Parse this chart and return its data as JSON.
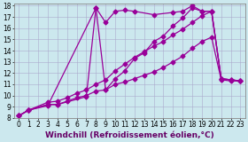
{
  "xlabel": "Windchill (Refroidissement éolien,°C)",
  "bg_color": "#cce8ee",
  "grid_color": "#aaaacc",
  "line_color": "#990099",
  "xlim": [
    -0.5,
    23.5
  ],
  "ylim": [
    8,
    18.2
  ],
  "xticks": [
    0,
    1,
    2,
    3,
    4,
    5,
    6,
    7,
    8,
    9,
    10,
    11,
    12,
    13,
    14,
    15,
    16,
    17,
    18,
    19,
    20,
    21,
    22,
    23
  ],
  "yticks": [
    8,
    9,
    10,
    11,
    12,
    13,
    14,
    15,
    16,
    17,
    18
  ],
  "line1_x": [
    0,
    1,
    3,
    4,
    5,
    6,
    7,
    8,
    9,
    10,
    11,
    12,
    13,
    14,
    15,
    16,
    17,
    18,
    19,
    20,
    21,
    22,
    23
  ],
  "line1_y": [
    8.2,
    8.7,
    9.4,
    9.5,
    9.8,
    10.2,
    10.5,
    11.0,
    11.4,
    12.2,
    12.8,
    13.4,
    13.9,
    14.4,
    14.8,
    15.4,
    15.9,
    16.5,
    17.1,
    17.5,
    11.5,
    11.4,
    11.3
  ],
  "line2_x": [
    0,
    1,
    3,
    4,
    5,
    6,
    7,
    8,
    9,
    10,
    11,
    12,
    13,
    14,
    15,
    16,
    17,
    18,
    19,
    20,
    21,
    22,
    23
  ],
  "line2_y": [
    8.2,
    8.7,
    9.2,
    9.2,
    9.5,
    9.8,
    10.0,
    10.4,
    10.5,
    11.0,
    11.2,
    11.5,
    11.8,
    12.1,
    12.5,
    13.0,
    13.5,
    14.2,
    14.8,
    15.2,
    11.4,
    11.3,
    11.3
  ],
  "line3_x": [
    0,
    1,
    3,
    8,
    9,
    10,
    11,
    12,
    13,
    14,
    15,
    16,
    17,
    18,
    19,
    20,
    21,
    22,
    23
  ],
  "line3_y": [
    8.2,
    8.7,
    9.1,
    17.8,
    10.5,
    11.5,
    12.2,
    13.3,
    13.8,
    14.8,
    15.3,
    16.2,
    16.9,
    17.8,
    17.5,
    17.5,
    11.5,
    11.4,
    11.3
  ],
  "line4_x": [
    0,
    1,
    3,
    4,
    7,
    8,
    9,
    10,
    11,
    12,
    14,
    16,
    17,
    18,
    19,
    20,
    21,
    22,
    23
  ],
  "line4_y": [
    8.2,
    8.7,
    9.2,
    9.2,
    9.9,
    17.8,
    16.5,
    17.5,
    17.6,
    17.5,
    17.2,
    17.4,
    17.5,
    18.0,
    17.5,
    17.5,
    11.5,
    11.4,
    11.3
  ],
  "markersize": 2.5,
  "linewidth": 0.9,
  "xlabel_fontsize": 6.5,
  "tick_fontsize": 5.5
}
